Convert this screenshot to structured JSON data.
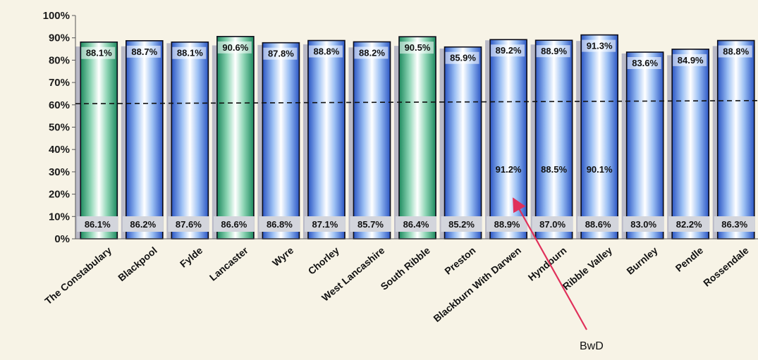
{
  "chart_data": {
    "type": "bar",
    "title": "",
    "xlabel": "",
    "ylabel": "",
    "ylim": [
      0,
      100
    ],
    "yticks": [
      "0%",
      "10%",
      "20%",
      "30%",
      "40%",
      "50%",
      "60%",
      "70%",
      "80%",
      "90%",
      "100%"
    ],
    "categories": [
      "The Constabulary",
      "Blackpool",
      "Fylde",
      "Lancaster",
      "Wyre",
      "Chorley",
      "West Lancashire",
      "South Ribble",
      "Preston",
      "Blackburn With Darwen",
      "Hyndburn",
      "Ribble Valley",
      "Burnley",
      "Pendle",
      "Rossendale"
    ],
    "series": [
      {
        "values": [
          86.1,
          86.2,
          87.6,
          86.6,
          86.8,
          87.1,
          85.7,
          86.4,
          85.2,
          88.9,
          87.0,
          88.6,
          83.0,
          82.2,
          86.3
        ],
        "labels": [
          "86.1%",
          "86.2%",
          "87.6%",
          "86.6%",
          "86.8%",
          "87.1%",
          "85.7%",
          "86.4%",
          "85.2%",
          "88.9%",
          "87.0%",
          "88.6%",
          "83.0%",
          "82.2%",
          "86.3%"
        ],
        "color": "#b9b9c6"
      },
      {
        "values": [
          88.1,
          88.7,
          88.1,
          90.6,
          87.8,
          88.8,
          88.2,
          90.5,
          85.9,
          89.2,
          88.9,
          91.3,
          83.6,
          84.9,
          88.8
        ],
        "labels": [
          "88.1%",
          "88.7%",
          "88.1%",
          "90.6%",
          "87.8%",
          "88.8%",
          "88.2%",
          "90.5%",
          "85.9%",
          "89.2%",
          "88.9%",
          "91.3%",
          "83.6%",
          "84.9%",
          "88.8%"
        ],
        "colors": [
          "#2fa57a",
          "#3d6fd6",
          "#3d6fd6",
          "#2fa57a",
          "#3d6fd6",
          "#3d6fd6",
          "#3d6fd6",
          "#2fa57a",
          "#3d6fd6",
          "#3d6fd6",
          "#3d6fd6",
          "#3d6fd6",
          "#3d6fd6",
          "#3d6fd6",
          "#3d6fd6"
        ]
      }
    ],
    "mid_labels": [
      {
        "category": "Blackburn With Darwen",
        "label": "91.2%"
      },
      {
        "category": "Hyndburn",
        "label": "88.5%"
      },
      {
        "category": "Ribble Valley",
        "label": "90.1%"
      }
    ],
    "reference_line": {
      "y_start": 60.5,
      "y_end": 61.9,
      "style": "dashed"
    },
    "annotations": [
      {
        "text": "BwD",
        "arrow_color": "#e0305a",
        "target_category": "Blackburn With Darwen"
      }
    ]
  }
}
